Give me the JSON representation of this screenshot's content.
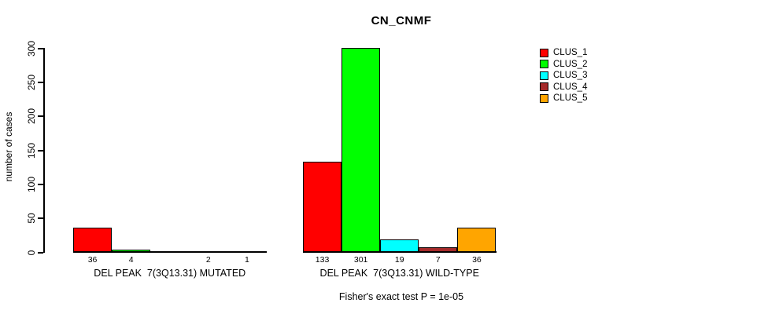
{
  "title": "CN_CNMF",
  "y_axis_label": "number of cases",
  "footer": "Fisher's exact test P = 1e-05",
  "chart_data": {
    "type": "bar",
    "title": "CN_CNMF",
    "xlabel": "",
    "ylabel": "number of cases",
    "ylim": [
      0,
      300
    ],
    "yticks": [
      0,
      50,
      100,
      150,
      200,
      250,
      300
    ],
    "grid": false,
    "legend_position": "right",
    "groups": [
      "DEL PEAK  7(3Q13.31) MUTATED",
      "DEL PEAK  7(3Q13.31) WILD-TYPE"
    ],
    "series": [
      {
        "name": "CLUS_1",
        "color": "#FF0000",
        "values": [
          36,
          133
        ]
      },
      {
        "name": "CLUS_2",
        "color": "#00FF00",
        "values": [
          4,
          301
        ]
      },
      {
        "name": "CLUS_3",
        "color": "#00FFFF",
        "values": [
          0,
          19
        ]
      },
      {
        "name": "CLUS_4",
        "color": "#A52A2A",
        "values": [
          2,
          7
        ]
      },
      {
        "name": "CLUS_5",
        "color": "#FFA500",
        "values": [
          1,
          36
        ]
      }
    ],
    "bar_value_labels": [
      [
        "36",
        "4",
        "",
        "2",
        "1"
      ],
      [
        "133",
        "301",
        "19",
        "7",
        "36"
      ]
    ],
    "annotation": "Fisher's exact test P = 1e-05"
  }
}
